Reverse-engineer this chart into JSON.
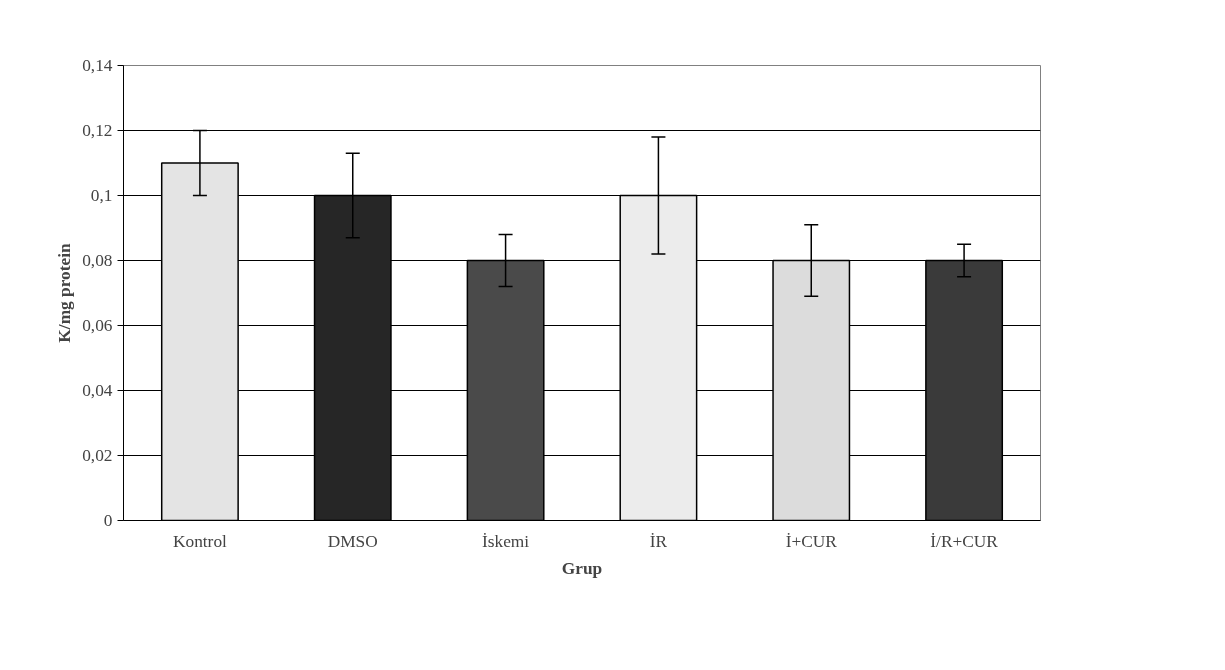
{
  "chart_data": {
    "type": "bar",
    "xlabel": "Grup",
    "ylabel": "K/mg protein",
    "categories": [
      "Kontrol",
      "DMSO",
      "İskemi",
      "İR",
      "İ+CUR",
      "İ/R+CUR"
    ],
    "values": [
      0.11,
      0.1,
      0.08,
      0.1,
      0.08,
      0.08
    ],
    "errors": [
      0.01,
      0.013,
      0.008,
      0.018,
      0.011,
      0.005
    ],
    "colors": [
      "#e4e4e4",
      "#262626",
      "#4a4a4a",
      "#ececec",
      "#dcdcdc",
      "#3a3a3a"
    ],
    "ylim": [
      0,
      0.14
    ],
    "yticks": [
      0,
      {
        "value": 0.02,
        "label": "0,02"
      },
      {
        "value": 0.04,
        "label": "0,04"
      },
      {
        "value": 0.06,
        "label": "0,06"
      },
      {
        "value": 0.08,
        "label": "0,08"
      },
      {
        "value": 0.1,
        "label": "0,1"
      },
      {
        "value": 0.12,
        "label": "0,12"
      },
      {
        "value": 0.14,
        "label": "0,14"
      }
    ],
    "grid": "y"
  }
}
